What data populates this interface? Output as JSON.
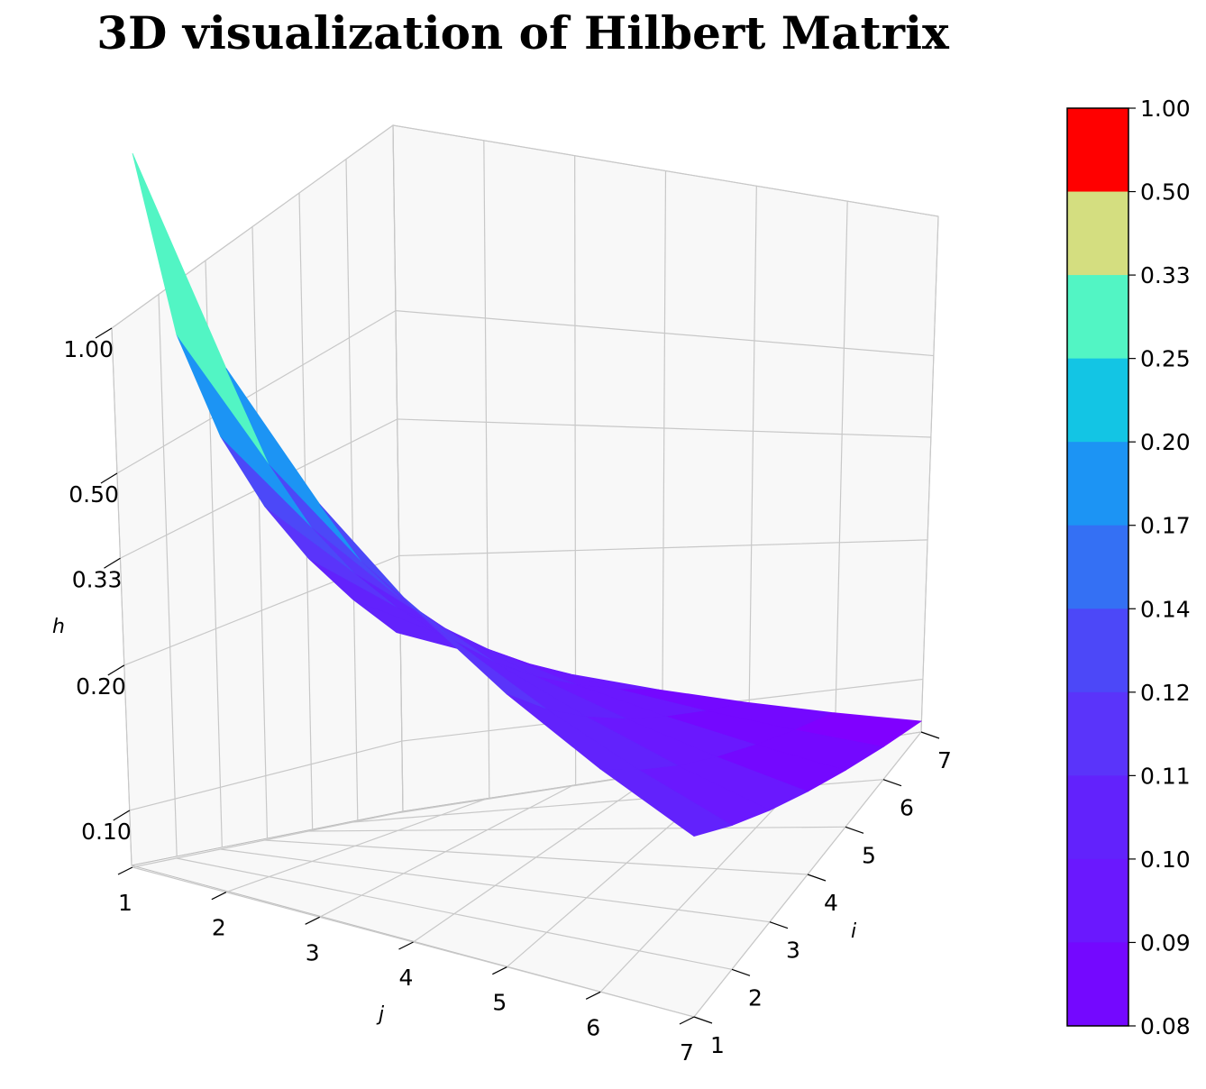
{
  "chart_data": {
    "type": "surface3d",
    "title": "3D visualization of Hilbert Matrix",
    "xlabel": "i",
    "ylabel": "j",
    "zlabel": "h",
    "x_ticks": [
      "1",
      "2",
      "3",
      "4",
      "5",
      "6",
      "7"
    ],
    "y_ticks": [
      "1",
      "2",
      "3",
      "4",
      "5",
      "6",
      "7"
    ],
    "z_ticks": [
      {
        "value": 1.0,
        "label": "1.00"
      },
      {
        "value": 0.5,
        "label": "0.50"
      },
      {
        "value": 0.3333,
        "label": "0.33"
      },
      {
        "value": 0.2,
        "label": "0.20"
      },
      {
        "value": 0.1,
        "label": "0.10"
      }
    ],
    "matrix": [
      [
        1.0,
        0.5,
        0.3333,
        0.25,
        0.2,
        0.1667,
        0.1429
      ],
      [
        0.5,
        0.3333,
        0.25,
        0.2,
        0.1667,
        0.1429,
        0.125
      ],
      [
        0.3333,
        0.25,
        0.2,
        0.1667,
        0.1429,
        0.125,
        0.1111
      ],
      [
        0.25,
        0.2,
        0.1667,
        0.1429,
        0.125,
        0.1111,
        0.1
      ],
      [
        0.2,
        0.1667,
        0.1429,
        0.125,
        0.1111,
        0.1,
        0.0909
      ],
      [
        0.1667,
        0.1429,
        0.125,
        0.1111,
        0.1,
        0.0909,
        0.0833
      ],
      [
        0.1429,
        0.125,
        0.1111,
        0.1,
        0.0909,
        0.0833,
        0.0769
      ]
    ],
    "colormap": "rainbow",
    "colorbar": {
      "ticks": [
        "1.00",
        "0.50",
        "0.33",
        "0.25",
        "0.20",
        "0.17",
        "0.14",
        "0.12",
        "0.11",
        "0.10",
        "0.09",
        "0.08"
      ],
      "colors": [
        "#ff0000",
        "#d4de80",
        "#52f5c4",
        "#13c5e4",
        "#1c94f4",
        "#3470f4",
        "#4c48f8",
        "#5a34fa",
        "#6222fc",
        "#6a18fe",
        "#7408ff",
        "#8000ff"
      ]
    },
    "grid": true
  }
}
